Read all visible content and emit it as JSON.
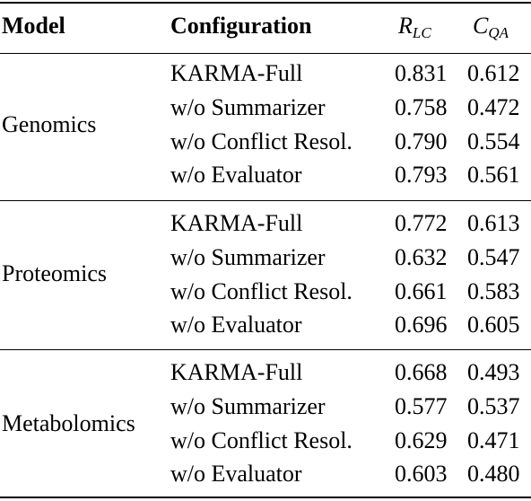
{
  "header": {
    "model": "Model",
    "configuration": "Configuration",
    "col1_base": "R",
    "col1_sub": "LC",
    "col2_base": "C",
    "col2_sub": "QA"
  },
  "groups": [
    {
      "model": "Genomics",
      "rows": [
        {
          "config": "KARMA-Full",
          "r_lc": "0.831",
          "c_qa": "0.612"
        },
        {
          "config": "w/o Summarizer",
          "r_lc": "0.758",
          "c_qa": "0.472"
        },
        {
          "config": "w/o Conflict Resol.",
          "r_lc": "0.790",
          "c_qa": "0.554"
        },
        {
          "config": "w/o Evaluator",
          "r_lc": "0.793",
          "c_qa": "0.561"
        }
      ]
    },
    {
      "model": "Proteomics",
      "rows": [
        {
          "config": "KARMA-Full",
          "r_lc": "0.772",
          "c_qa": "0.613"
        },
        {
          "config": "w/o Summarizer",
          "r_lc": "0.632",
          "c_qa": "0.547"
        },
        {
          "config": "w/o Conflict Resol.",
          "r_lc": "0.661",
          "c_qa": "0.583"
        },
        {
          "config": "w/o Evaluator",
          "r_lc": "0.696",
          "c_qa": "0.605"
        }
      ]
    },
    {
      "model": "Metabolomics",
      "rows": [
        {
          "config": "KARMA-Full",
          "r_lc": "0.668",
          "c_qa": "0.493"
        },
        {
          "config": "w/o Summarizer",
          "r_lc": "0.577",
          "c_qa": "0.537"
        },
        {
          "config": "w/o Conflict Resol.",
          "r_lc": "0.629",
          "c_qa": "0.471"
        },
        {
          "config": "w/o Evaluator",
          "r_lc": "0.603",
          "c_qa": "0.480"
        }
      ]
    }
  ]
}
